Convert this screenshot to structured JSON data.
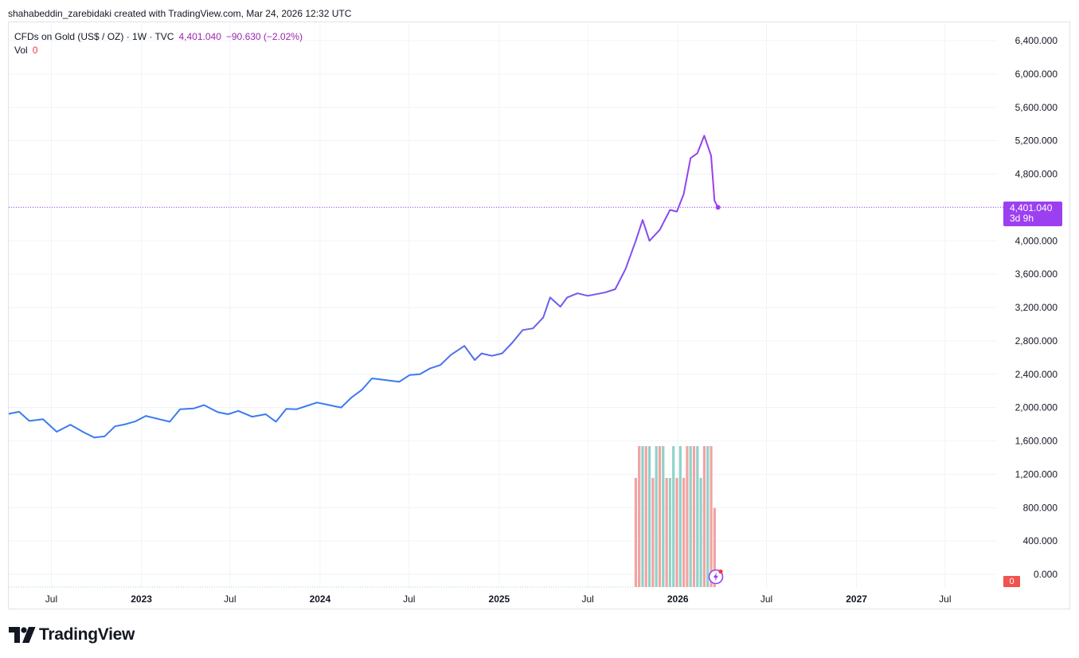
{
  "header": {
    "credit": "shahabeddin_zarebidaki created with TradingView.com, Mar 24, 2026 12:32 UTC"
  },
  "legend": {
    "symbol": "CFDs on Gold (US$ / OZ) · 1W · TVC",
    "last": "4,401.040",
    "change": "−90.630 (−2.02%)",
    "vol_label": "Vol",
    "vol_value": "0"
  },
  "price_label": {
    "value": "4,401.040",
    "countdown": "3d 9h"
  },
  "volume_label": "0",
  "brand": {
    "name": "TradingView",
    "logo_icon": "tradingview-logo-icon"
  },
  "colors": {
    "line_start": "#3a7bf0",
    "line_end": "#9c3ff0",
    "price_line": "#9c3ff0",
    "vol_up": "#8fd2c8",
    "vol_down": "#f3a3a3",
    "grid": "#f0f3fa",
    "axis_text": "#131722"
  },
  "chart_data": {
    "type": "line",
    "title": "CFDs on Gold (US$ / OZ) · 1W · TVC",
    "x_tick_labels": [
      "Jul",
      "2023",
      "Jul",
      "2024",
      "Jul",
      "2025",
      "Jul",
      "2026",
      "Jul",
      "2027",
      "Jul"
    ],
    "y_tick_labels": [
      "0.000",
      "400.000",
      "800.000",
      "1,200.000",
      "1,600.000",
      "2,000.000",
      "2,400.000",
      "2,800.000",
      "3,200.000",
      "3,600.000",
      "4,000.000",
      "4,400.000",
      "4,800.000",
      "5,200.000",
      "5,600.000",
      "6,000.000",
      "6,400.000"
    ],
    "ylim": [
      0,
      6400
    ],
    "xlim": [
      "2022-04-05",
      "2027-10-15"
    ],
    "grid": true,
    "last_value": 4401.04,
    "series": [
      {
        "values": [
          [
            "2022-04-05",
            1925
          ],
          [
            "2022-04-26",
            1950
          ],
          [
            "2022-05-17",
            1840
          ],
          [
            "2022-06-14",
            1860
          ],
          [
            "2022-07-12",
            1710
          ],
          [
            "2022-08-09",
            1795
          ],
          [
            "2022-09-06",
            1700
          ],
          [
            "2022-09-27",
            1640
          ],
          [
            "2022-10-18",
            1655
          ],
          [
            "2022-11-08",
            1775
          ],
          [
            "2022-11-29",
            1800
          ],
          [
            "2022-12-20",
            1835
          ],
          [
            "2023-01-10",
            1900
          ],
          [
            "2023-02-07",
            1860
          ],
          [
            "2023-02-28",
            1830
          ],
          [
            "2023-03-21",
            1980
          ],
          [
            "2023-04-18",
            1990
          ],
          [
            "2023-05-09",
            2030
          ],
          [
            "2023-06-06",
            1945
          ],
          [
            "2023-06-27",
            1920
          ],
          [
            "2023-07-18",
            1960
          ],
          [
            "2023-08-15",
            1890
          ],
          [
            "2023-09-12",
            1920
          ],
          [
            "2023-10-03",
            1830
          ],
          [
            "2023-10-24",
            1985
          ],
          [
            "2023-11-14",
            1980
          ],
          [
            "2023-12-05",
            2020
          ],
          [
            "2023-12-26",
            2060
          ],
          [
            "2024-01-16",
            2035
          ],
          [
            "2024-02-13",
            2000
          ],
          [
            "2024-03-05",
            2120
          ],
          [
            "2024-03-26",
            2210
          ],
          [
            "2024-04-16",
            2350
          ],
          [
            "2024-05-14",
            2330
          ],
          [
            "2024-06-11",
            2310
          ],
          [
            "2024-07-02",
            2390
          ],
          [
            "2024-07-23",
            2400
          ],
          [
            "2024-08-13",
            2470
          ],
          [
            "2024-09-03",
            2510
          ],
          [
            "2024-09-24",
            2630
          ],
          [
            "2024-10-22",
            2740
          ],
          [
            "2024-11-12",
            2570
          ],
          [
            "2024-11-26",
            2650
          ],
          [
            "2024-12-17",
            2620
          ],
          [
            "2025-01-07",
            2650
          ],
          [
            "2025-01-28",
            2780
          ],
          [
            "2025-02-18",
            2930
          ],
          [
            "2025-03-11",
            2950
          ],
          [
            "2025-04-01",
            3080
          ],
          [
            "2025-04-15",
            3320
          ],
          [
            "2025-05-06",
            3210
          ],
          [
            "2025-05-20",
            3320
          ],
          [
            "2025-06-10",
            3370
          ],
          [
            "2025-07-01",
            3340
          ],
          [
            "2025-08-05",
            3380
          ],
          [
            "2025-08-26",
            3420
          ],
          [
            "2025-09-16",
            3660
          ],
          [
            "2025-10-07",
            4000
          ],
          [
            "2025-10-21",
            4250
          ],
          [
            "2025-11-04",
            4000
          ],
          [
            "2025-11-25",
            4130
          ],
          [
            "2025-12-16",
            4370
          ],
          [
            "2025-12-30",
            4350
          ],
          [
            "2026-01-13",
            4560
          ],
          [
            "2026-01-27",
            4990
          ],
          [
            "2026-02-10",
            5050
          ],
          [
            "2026-02-24",
            5260
          ],
          [
            "2026-03-10",
            5020
          ],
          [
            "2026-03-17",
            4480
          ],
          [
            "2026-03-24",
            4401.04
          ]
        ]
      }
    ],
    "volume": {
      "name": "Vol",
      "last_value": 0,
      "bars": [
        [
          "2025-10-07",
          "down",
          1200
        ],
        [
          "2025-10-14",
          "down",
          1550
        ],
        [
          "2025-10-21",
          "up",
          1550
        ],
        [
          "2025-10-28",
          "down",
          1550
        ],
        [
          "2025-11-04",
          "up",
          1550
        ],
        [
          "2025-11-11",
          "down",
          1200
        ],
        [
          "2025-11-18",
          "up",
          1550
        ],
        [
          "2025-11-25",
          "down",
          1550
        ],
        [
          "2025-12-02",
          "up",
          1550
        ],
        [
          "2025-12-09",
          "down",
          1200
        ],
        [
          "2025-12-16",
          "up",
          1200
        ],
        [
          "2025-12-23",
          "up",
          1550
        ],
        [
          "2025-12-30",
          "down",
          1200
        ],
        [
          "2026-01-06",
          "up",
          1550
        ],
        [
          "2026-01-13",
          "down",
          1200
        ],
        [
          "2026-01-20",
          "down",
          1550
        ],
        [
          "2026-01-27",
          "up",
          1550
        ],
        [
          "2026-02-03",
          "down",
          1550
        ],
        [
          "2026-02-10",
          "up",
          1550
        ],
        [
          "2026-02-17",
          "up",
          1200
        ],
        [
          "2026-02-24",
          "down",
          1550
        ],
        [
          "2026-03-03",
          "up",
          1550
        ],
        [
          "2026-03-10",
          "down",
          1550
        ],
        [
          "2026-03-17",
          "down",
          870
        ]
      ]
    }
  }
}
